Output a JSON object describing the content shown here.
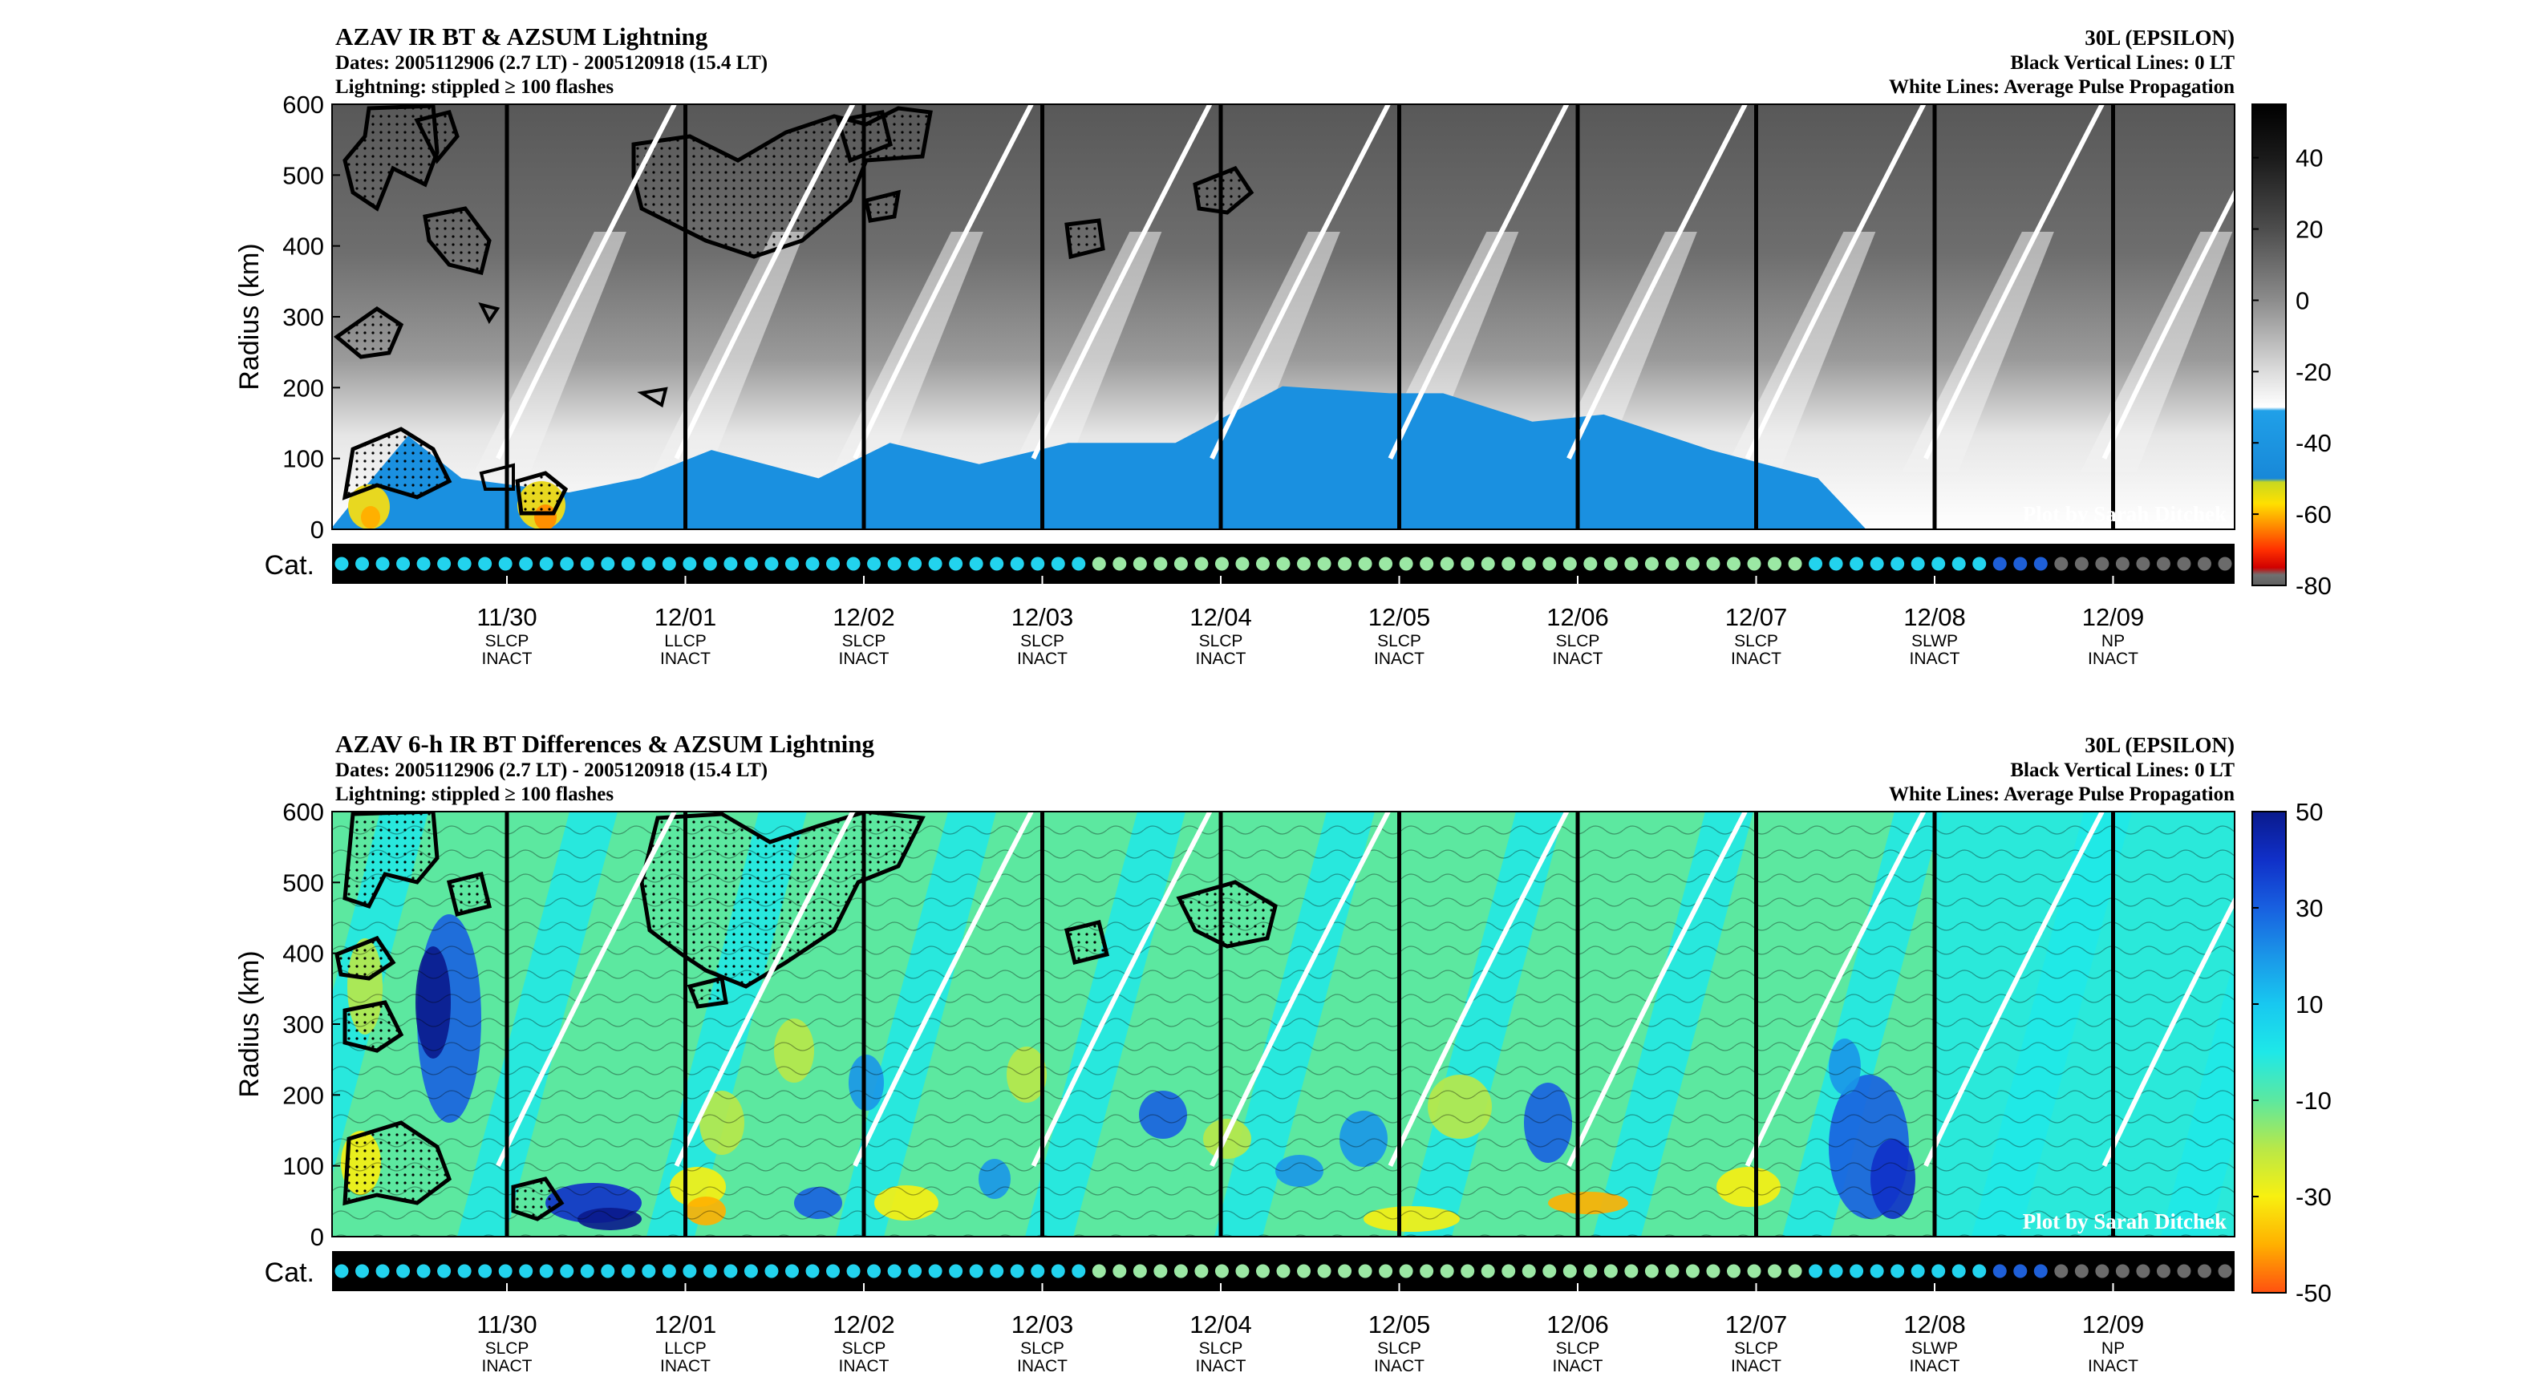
{
  "credit": "Plot by Sarah Ditchek",
  "storm": "30L (EPSILON)",
  "black_lines_note": "Black Vertical Lines: 0 LT",
  "white_lines_note": "White Lines: Average Pulse Propagation",
  "dates_line": "Dates: 2005112906 (2.7 LT) - 2005120918 (15.4 LT)",
  "lightning_line": "Lightning: stippled ≥ 100 flashes",
  "ylabel": "Radius (km)",
  "cat_label": "Cat.",
  "day_ticks": [
    {
      "date": "11/30",
      "cat": "SLCP",
      "act": "INACT"
    },
    {
      "date": "12/01",
      "cat": "LLCP",
      "act": "INACT"
    },
    {
      "date": "12/02",
      "cat": "SLCP",
      "act": "INACT"
    },
    {
      "date": "12/03",
      "cat": "SLCP",
      "act": "INACT"
    },
    {
      "date": "12/04",
      "cat": "SLCP",
      "act": "INACT"
    },
    {
      "date": "12/05",
      "cat": "SLCP",
      "act": "INACT"
    },
    {
      "date": "12/06",
      "cat": "SLCP",
      "act": "INACT"
    },
    {
      "date": "12/07",
      "cat": "SLCP",
      "act": "INACT"
    },
    {
      "date": "12/08",
      "cat": "SLWP",
      "act": "INACT"
    },
    {
      "date": "12/09",
      "cat": "NP",
      "act": "INACT"
    }
  ],
  "cat_dots": [
    {
      "color": "#22d3ee",
      "count": 37
    },
    {
      "color": "#9be8a4",
      "count": 35
    },
    {
      "color": "#22d3ee",
      "count": 9
    },
    {
      "color": "#1e5fd8",
      "count": 3
    },
    {
      "color": "#6b6b6b",
      "count": 9
    }
  ],
  "chart_data": [
    {
      "type": "heatmap",
      "title": "AZAV IR BT & AZSUM Lightning",
      "ylabel": "Radius (km)",
      "ylim": [
        0,
        600
      ],
      "yticks": [
        0,
        100,
        200,
        300,
        400,
        500,
        600
      ],
      "xlabel": "",
      "colorbar": {
        "ticks": [
          40,
          20,
          0,
          -20,
          -40,
          -60,
          -80
        ],
        "range": [
          -80,
          55
        ],
        "stops": [
          {
            "value": 55,
            "color": "#000000"
          },
          {
            "value": 40,
            "color": "#1a1a1a"
          },
          {
            "value": 20,
            "color": "#4d4d4d"
          },
          {
            "value": 0,
            "color": "#8c8c8c"
          },
          {
            "value": -20,
            "color": "#dcdcdc"
          },
          {
            "value": -30,
            "color": "#ffffff"
          },
          {
            "value": -31,
            "color": "#20a0e8"
          },
          {
            "value": -50,
            "color": "#1888d8"
          },
          {
            "value": -51,
            "color": "#c8d820"
          },
          {
            "value": -57,
            "color": "#ffe000"
          },
          {
            "value": -63,
            "color": "#ff9000"
          },
          {
            "value": -70,
            "color": "#ff3000"
          },
          {
            "value": -75,
            "color": "#d00000"
          },
          {
            "value": -77,
            "color": "#707070"
          },
          {
            "value": -80,
            "color": "#606060"
          }
        ]
      },
      "cold_region_radius_km": [
        {
          "x": 0.0,
          "top": 50
        },
        {
          "x": 0.3,
          "top": 120
        },
        {
          "x": 0.6,
          "top": 80
        },
        {
          "x": 1.2,
          "top": 40
        },
        {
          "x": 1.6,
          "top": 80
        },
        {
          "x": 2.0,
          "top": 100
        },
        {
          "x": 2.6,
          "top": 80
        },
        {
          "x": 3.0,
          "top": 110
        },
        {
          "x": 3.5,
          "top": 100
        },
        {
          "x": 4.0,
          "top": 110
        },
        {
          "x": 4.6,
          "top": 130
        },
        {
          "x": 5.2,
          "top": 190
        },
        {
          "x": 5.8,
          "top": 200
        },
        {
          "x": 6.1,
          "top": 180
        },
        {
          "x": 6.6,
          "top": 160
        },
        {
          "x": 7.0,
          "top": 150
        },
        {
          "x": 7.6,
          "top": 120
        },
        {
          "x": 8.2,
          "top": 60
        },
        {
          "x": 8.5,
          "top": 0
        }
      ],
      "pulse_lines_start_day": [
        -0.05,
        0.95,
        1.95,
        2.95,
        3.95,
        4.95,
        5.95,
        6.95,
        7.95,
        8.95
      ]
    },
    {
      "type": "heatmap",
      "title": "AZAV 6-h IR BT Differences & AZSUM Lightning",
      "ylabel": "Radius (km)",
      "ylim": [
        0,
        600
      ],
      "yticks": [
        0,
        100,
        200,
        300,
        400,
        500,
        600
      ],
      "colorbar": {
        "ticks": [
          50,
          30,
          10,
          -10,
          -30,
          -50
        ],
        "range": [
          -50,
          50
        ],
        "stops": [
          {
            "value": 50,
            "color": "#0a1a8c"
          },
          {
            "value": 40,
            "color": "#1030c8"
          },
          {
            "value": 30,
            "color": "#1860e0"
          },
          {
            "value": 20,
            "color": "#1a96e8"
          },
          {
            "value": 10,
            "color": "#18c8f0"
          },
          {
            "value": 0,
            "color": "#1ee8e8"
          },
          {
            "value": -10,
            "color": "#5ce8a0"
          },
          {
            "value": -20,
            "color": "#b8e848"
          },
          {
            "value": -30,
            "color": "#f8f010"
          },
          {
            "value": -40,
            "color": "#ffb000"
          },
          {
            "value": -50,
            "color": "#ff5010"
          }
        ]
      },
      "pulse_lines_start_day": [
        -0.05,
        0.95,
        1.95,
        2.95,
        3.95,
        4.95,
        5.95,
        6.95,
        7.95,
        8.95
      ]
    }
  ]
}
